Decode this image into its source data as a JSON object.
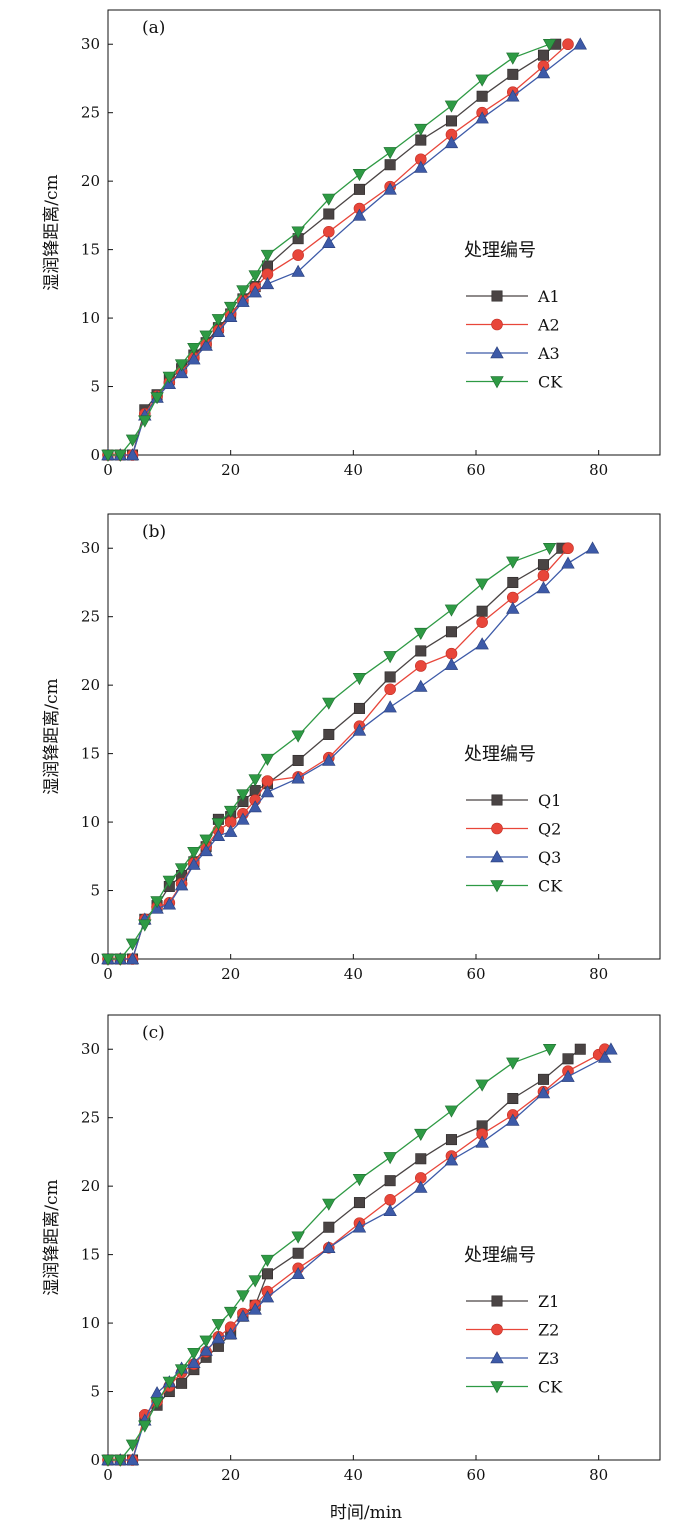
{
  "colors": {
    "A1": "#4a4444",
    "A2": "#e8463a",
    "A3": "#3d5aa8",
    "CK": "#2e9a44"
  },
  "xlabel": "时间/min",
  "chart_data": [
    {
      "type": "line",
      "label": "(a)",
      "ylabel": "湿润锋距离/cm",
      "xlim": [
        0,
        90
      ],
      "ylim": [
        0,
        32.5
      ],
      "xticks": [
        0,
        20,
        40,
        60,
        80
      ],
      "yticks": [
        0,
        5,
        10,
        15,
        20,
        25,
        30
      ],
      "legend_title": "处理编号",
      "legend_position": "right",
      "grid": false,
      "series": [
        {
          "name": "A1",
          "marker": "square",
          "color": "#4a4444",
          "x": [
            0,
            2,
            4,
            6,
            8,
            10,
            12,
            14,
            16,
            18,
            20,
            22,
            24,
            26,
            31,
            36,
            41,
            46,
            51,
            56,
            61,
            66,
            71,
            73
          ],
          "y": [
            0,
            0,
            0,
            3.3,
            4.4,
            5.5,
            6.3,
            7.3,
            8.2,
            9.3,
            10.3,
            11.4,
            12.3,
            13.8,
            15.8,
            17.6,
            19.4,
            21.2,
            23.0,
            24.4,
            26.2,
            27.8,
            29.2,
            30.0
          ]
        },
        {
          "name": "A2",
          "marker": "circle",
          "color": "#e8463a",
          "x": [
            0,
            2,
            4,
            6,
            8,
            10,
            12,
            14,
            16,
            18,
            20,
            22,
            24,
            26,
            31,
            36,
            41,
            46,
            51,
            56,
            61,
            66,
            71,
            75
          ],
          "y": [
            0,
            0,
            0,
            3.0,
            4.3,
            5.3,
            6.1,
            7.1,
            8.1,
            9.1,
            10.3,
            11.3,
            12.2,
            13.2,
            14.6,
            16.3,
            18.0,
            19.6,
            21.6,
            23.4,
            25.0,
            26.5,
            28.4,
            30.0
          ]
        },
        {
          "name": "A3",
          "marker": "triangle-up",
          "color": "#3d5aa8",
          "x": [
            0,
            2,
            4,
            6,
            8,
            10,
            12,
            14,
            16,
            18,
            20,
            22,
            24,
            26,
            31,
            36,
            41,
            46,
            51,
            56,
            61,
            66,
            71,
            77
          ],
          "y": [
            0,
            0,
            0,
            2.9,
            4.2,
            5.2,
            6.0,
            7.0,
            8.0,
            9.0,
            10.1,
            11.2,
            11.9,
            12.5,
            13.4,
            15.5,
            17.5,
            19.4,
            21.0,
            22.8,
            24.6,
            26.2,
            27.9,
            30.0
          ]
        },
        {
          "name": "CK",
          "marker": "triangle-down",
          "color": "#2e9a44",
          "x": [
            0,
            2,
            4,
            6,
            8,
            10,
            12,
            14,
            16,
            18,
            20,
            22,
            24,
            26,
            31,
            36,
            41,
            46,
            51,
            56,
            61,
            66,
            72
          ],
          "y": [
            0,
            0,
            1.1,
            2.5,
            4.2,
            5.7,
            6.6,
            7.8,
            8.7,
            9.9,
            10.8,
            12.0,
            13.1,
            14.6,
            16.3,
            18.7,
            20.5,
            22.1,
            23.8,
            25.5,
            27.4,
            29.0,
            30.0
          ]
        }
      ]
    },
    {
      "type": "line",
      "label": "(b)",
      "ylabel": "湿润锋距离/cm",
      "xlim": [
        0,
        90
      ],
      "ylim": [
        0,
        32.5
      ],
      "xticks": [
        0,
        20,
        40,
        60,
        80
      ],
      "yticks": [
        0,
        5,
        10,
        15,
        20,
        25,
        30
      ],
      "legend_title": "处理编号",
      "legend_position": "right",
      "grid": false,
      "series": [
        {
          "name": "Q1",
          "marker": "square",
          "color": "#4a4444",
          "x": [
            0,
            2,
            4,
            6,
            8,
            10,
            12,
            14,
            16,
            18,
            20,
            22,
            24,
            26,
            31,
            36,
            41,
            46,
            51,
            56,
            61,
            66,
            71,
            74
          ],
          "y": [
            0,
            0,
            0,
            2.9,
            3.9,
            5.3,
            6.1,
            7.1,
            8.2,
            10.2,
            10.4,
            11.5,
            12.3,
            12.8,
            14.5,
            16.4,
            18.3,
            20.6,
            22.5,
            23.9,
            25.4,
            27.5,
            28.8,
            30.0
          ]
        },
        {
          "name": "Q2",
          "marker": "circle",
          "color": "#e8463a",
          "x": [
            0,
            2,
            4,
            6,
            8,
            10,
            12,
            14,
            16,
            18,
            20,
            22,
            24,
            26,
            31,
            36,
            41,
            46,
            51,
            56,
            61,
            66,
            71,
            75
          ],
          "y": [
            0,
            0,
            0,
            2.9,
            3.8,
            4.1,
            5.5,
            7.0,
            8.2,
            9.4,
            10.0,
            10.6,
            11.6,
            13.0,
            13.3,
            14.7,
            17.0,
            19.7,
            21.4,
            22.3,
            24.6,
            26.4,
            28.0,
            30.0
          ]
        },
        {
          "name": "Q3",
          "marker": "triangle-up",
          "color": "#3d5aa8",
          "x": [
            0,
            2,
            4,
            6,
            8,
            10,
            12,
            14,
            16,
            18,
            20,
            22,
            24,
            26,
            31,
            36,
            41,
            46,
            51,
            56,
            61,
            66,
            71,
            75,
            79
          ],
          "y": [
            0,
            0,
            0,
            2.9,
            3.7,
            4.0,
            5.4,
            6.9,
            7.9,
            9.0,
            9.3,
            10.2,
            11.1,
            12.2,
            13.2,
            14.5,
            16.7,
            18.4,
            19.9,
            21.5,
            23.0,
            25.6,
            27.1,
            28.9,
            30.0
          ]
        },
        {
          "name": "CK",
          "marker": "triangle-down",
          "color": "#2e9a44",
          "x": [
            0,
            2,
            4,
            6,
            8,
            10,
            12,
            14,
            16,
            18,
            20,
            22,
            24,
            26,
            31,
            36,
            41,
            46,
            51,
            56,
            61,
            66,
            72
          ],
          "y": [
            0,
            0,
            1.1,
            2.5,
            4.2,
            5.7,
            6.6,
            7.8,
            8.7,
            9.9,
            10.8,
            12.0,
            13.1,
            14.6,
            16.3,
            18.7,
            20.5,
            22.1,
            23.8,
            25.5,
            27.4,
            29.0,
            30.0
          ]
        }
      ]
    },
    {
      "type": "line",
      "label": "(c)",
      "ylabel": "湿润锋距离/cm",
      "xlim": [
        0,
        90
      ],
      "ylim": [
        0,
        32.5
      ],
      "xticks": [
        0,
        20,
        40,
        60,
        80
      ],
      "yticks": [
        0,
        5,
        10,
        15,
        20,
        25,
        30
      ],
      "legend_title": "处理编号",
      "legend_position": "right",
      "grid": false,
      "series": [
        {
          "name": "Z1",
          "marker": "square",
          "color": "#4a4444",
          "x": [
            0,
            2,
            4,
            6,
            8,
            10,
            12,
            14,
            16,
            18,
            20,
            22,
            24,
            26,
            31,
            36,
            41,
            46,
            51,
            56,
            61,
            66,
            71,
            75,
            77
          ],
          "y": [
            0,
            0,
            0,
            3.1,
            4.0,
            5.0,
            5.6,
            6.6,
            7.5,
            8.3,
            9.2,
            10.5,
            11.3,
            13.6,
            15.1,
            17.0,
            18.8,
            20.4,
            22.0,
            23.4,
            24.4,
            26.4,
            27.8,
            29.3,
            30.0
          ]
        },
        {
          "name": "Z2",
          "marker": "circle",
          "color": "#e8463a",
          "x": [
            0,
            2,
            4,
            6,
            8,
            10,
            12,
            14,
            16,
            18,
            20,
            22,
            24,
            26,
            31,
            36,
            41,
            46,
            51,
            56,
            61,
            66,
            71,
            75,
            80,
            81
          ],
          "y": [
            0,
            0,
            0,
            3.3,
            4.3,
            5.4,
            6.4,
            7.0,
            7.9,
            9.0,
            9.7,
            10.7,
            11.3,
            12.3,
            14.0,
            15.5,
            17.3,
            19.0,
            20.6,
            22.2,
            23.8,
            25.2,
            26.9,
            28.4,
            29.6,
            30.0
          ]
        },
        {
          "name": "Z3",
          "marker": "triangle-up",
          "color": "#3d5aa8",
          "x": [
            0,
            2,
            4,
            6,
            8,
            10,
            12,
            14,
            16,
            18,
            20,
            22,
            24,
            26,
            31,
            36,
            41,
            46,
            51,
            56,
            61,
            66,
            71,
            75,
            81,
            82
          ],
          "y": [
            0,
            0,
            0,
            2.9,
            4.9,
            5.7,
            6.7,
            7.1,
            8.0,
            8.9,
            9.2,
            10.5,
            11.0,
            11.9,
            13.6,
            15.5,
            17.0,
            18.2,
            19.9,
            21.9,
            23.2,
            24.8,
            26.8,
            28.0,
            29.4,
            30.0
          ]
        },
        {
          "name": "CK",
          "marker": "triangle-down",
          "color": "#2e9a44",
          "x": [
            0,
            2,
            4,
            6,
            8,
            10,
            12,
            14,
            16,
            18,
            20,
            22,
            24,
            26,
            31,
            36,
            41,
            46,
            51,
            56,
            61,
            66,
            72
          ],
          "y": [
            0,
            0,
            1.1,
            2.5,
            4.2,
            5.7,
            6.6,
            7.8,
            8.7,
            9.9,
            10.8,
            12.0,
            13.1,
            14.6,
            16.3,
            18.7,
            20.5,
            22.1,
            23.8,
            25.5,
            27.4,
            29.0,
            30.0
          ]
        }
      ]
    }
  ]
}
